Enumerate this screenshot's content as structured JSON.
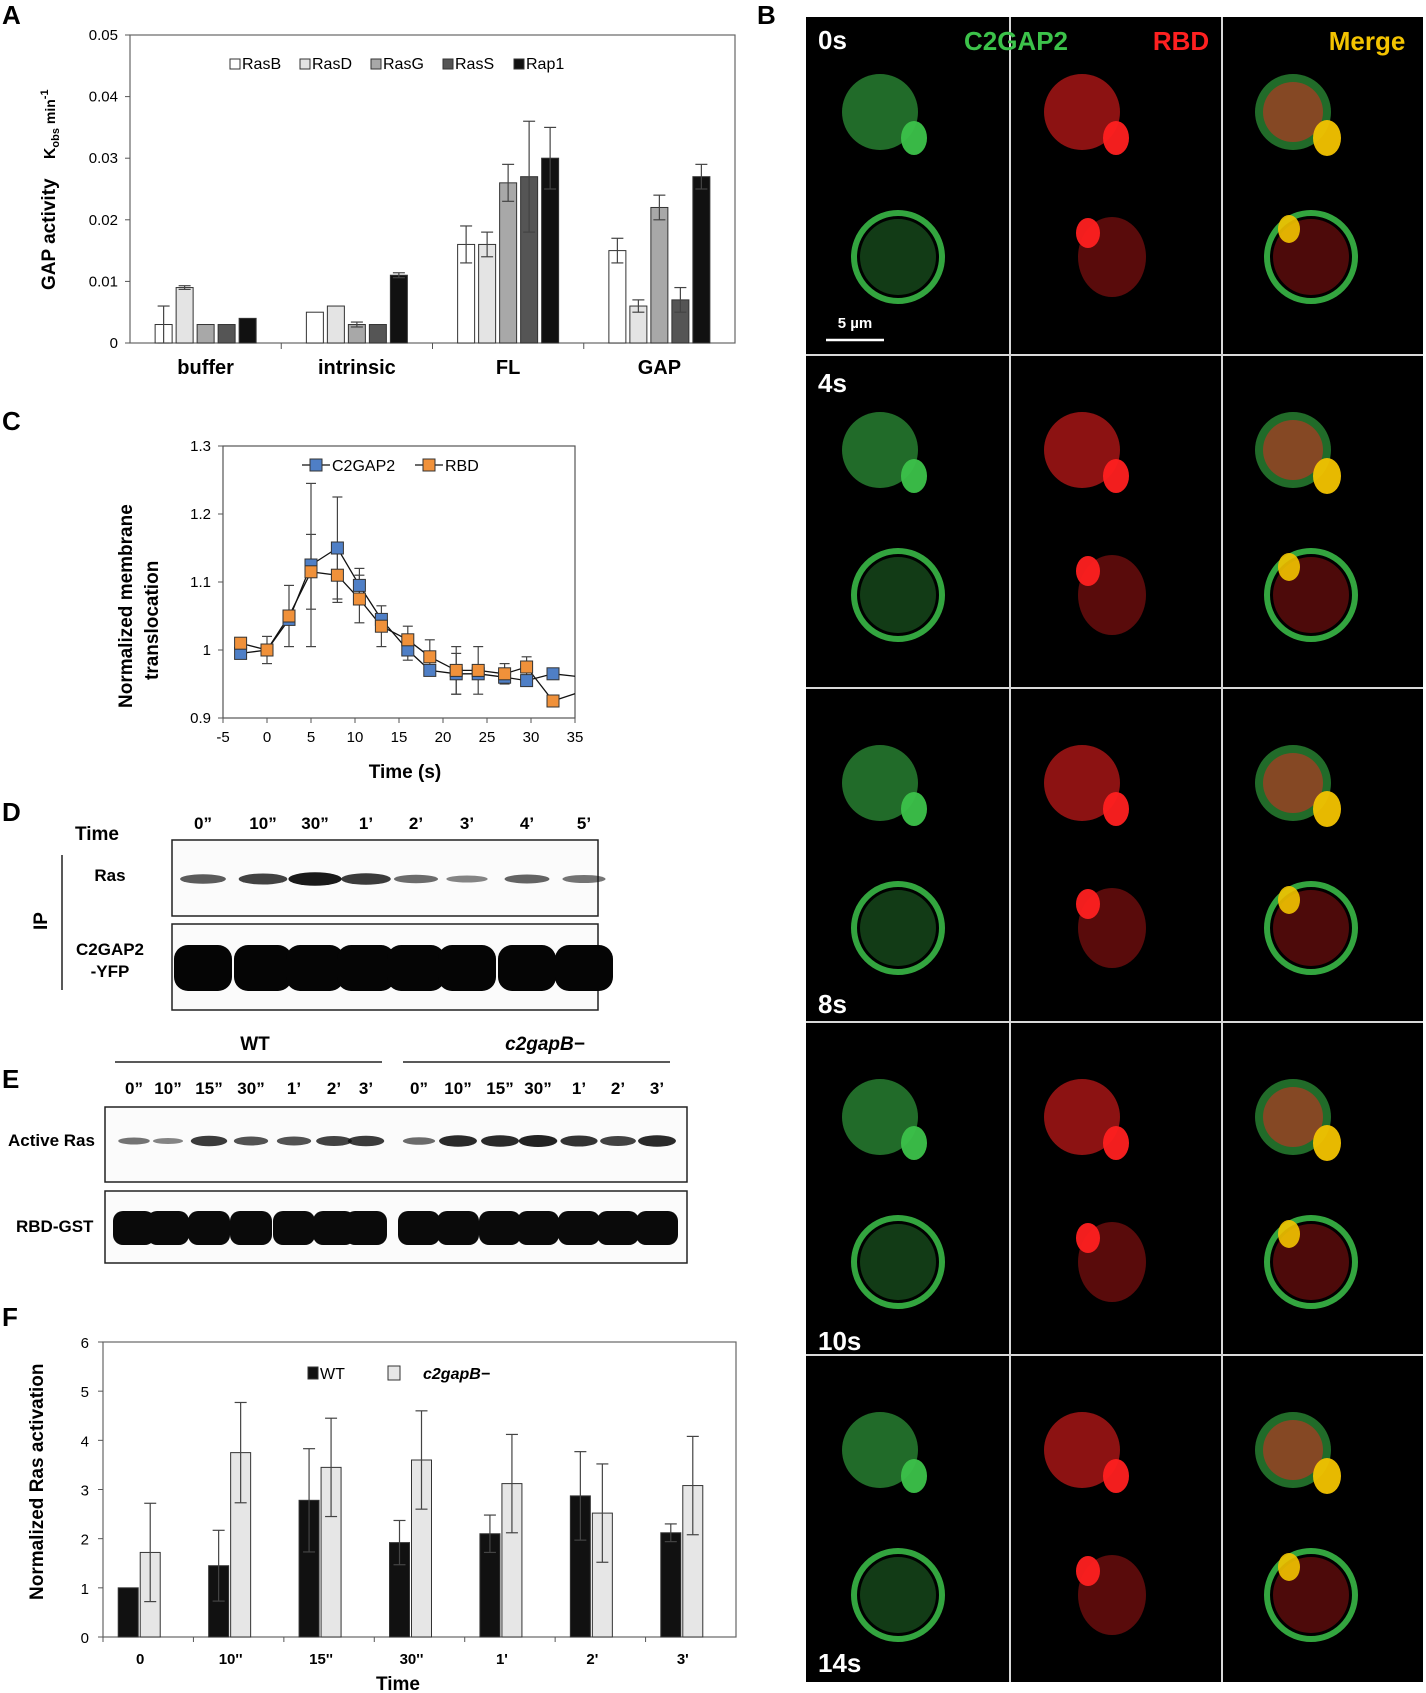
{
  "panel_labels": {
    "a": "A",
    "b": "B",
    "c": "C",
    "d": "D",
    "e": "E",
    "f": "F"
  },
  "chart_data": [
    {
      "id": "A",
      "type": "bar",
      "ylabel": "GAP activity",
      "ylabel_units": "K",
      "ylabel_units_sub": "obs",
      "ylabel_units_rest": " min",
      "ylabel_units_sup": "-1",
      "ylim": [
        0,
        0.05
      ],
      "yticks": [
        "0",
        "0.01",
        "0.02",
        "0.03",
        "0.04",
        "0.05"
      ],
      "categories": [
        "buffer",
        "intrinsic",
        "FL",
        "GAP"
      ],
      "legend_position": "top",
      "series": [
        {
          "name": "RasB",
          "color": "#ffffff",
          "values": [
            0.003,
            0.005,
            0.016,
            0.015
          ],
          "errors": [
            0.003,
            0.0001,
            0.003,
            0.002
          ]
        },
        {
          "name": "RasD",
          "color": "#e4e4e4",
          "values": [
            0.009,
            0.006,
            0.016,
            0.006
          ],
          "errors": [
            0.0003,
            0.0001,
            0.002,
            0.001
          ]
        },
        {
          "name": "RasG",
          "color": "#a8a8a8",
          "values": [
            0.003,
            0.003,
            0.026,
            0.022
          ],
          "errors": [
            0.0001,
            0.0004,
            0.003,
            0.002
          ]
        },
        {
          "name": "RasS",
          "color": "#555555",
          "values": [
            0.003,
            0.003,
            0.027,
            0.007
          ],
          "errors": [
            0.0001,
            0.0001,
            0.009,
            0.002
          ]
        },
        {
          "name": "Rap1",
          "color": "#111111",
          "values": [
            0.004,
            0.011,
            0.03,
            0.027
          ],
          "errors": [
            0.0001,
            0.0004,
            0.005,
            0.002
          ]
        }
      ]
    },
    {
      "id": "C",
      "type": "line",
      "xlabel": "Time (s)",
      "ylabel": "Normalized membrane translocation",
      "ylabel_line1": "Normalized membrane",
      "ylabel_line2": "translocation",
      "xlim": [
        -5,
        35
      ],
      "ylim": [
        0.9,
        1.3
      ],
      "xticks": [
        "-5",
        "0",
        "5",
        "10",
        "15",
        "20",
        "25",
        "30",
        "35"
      ],
      "yticks": [
        "0.9",
        "1",
        "1.1",
        "1.2",
        "1.3"
      ],
      "legend_position": "top",
      "series": [
        {
          "name": "C2GAP2",
          "color": "#4f7fc6",
          "x": [
            -3,
            0,
            2.5,
            5,
            8,
            10.5,
            13,
            16,
            18.5,
            21.5,
            24,
            27,
            29.5,
            32.5,
            36
          ],
          "y": [
            0.995,
            1.0,
            1.045,
            1.125,
            1.15,
            1.095,
            1.045,
            1.0,
            0.97,
            0.965,
            0.965,
            0.96,
            0.955,
            0.965,
            0.96
          ],
          "errors": [
            0,
            0,
            0,
            0.12,
            0.075,
            0.025,
            0,
            0.015,
            0,
            0.03,
            0,
            0,
            0,
            0,
            0
          ]
        },
        {
          "name": "RBD",
          "color": "#f0913a",
          "x": [
            -3,
            0,
            2.5,
            5,
            8,
            10.5,
            13,
            16,
            18.5,
            21.5,
            24,
            27,
            29.5,
            32.5,
            36
          ],
          "y": [
            1.01,
            1.0,
            1.05,
            1.115,
            1.11,
            1.075,
            1.035,
            1.015,
            0.99,
            0.97,
            0.97,
            0.965,
            0.975,
            0.925,
            0.94
          ],
          "errors": [
            0,
            0.02,
            0.045,
            0.055,
            0.04,
            0.035,
            0.03,
            0.02,
            0.025,
            0.035,
            0.035,
            0.015,
            0.015,
            0,
            0
          ]
        }
      ]
    },
    {
      "id": "F",
      "type": "bar",
      "xlabel": "Time",
      "ylabel": "Normalized Ras activation",
      "ylim": [
        0,
        6
      ],
      "yticks": [
        "0",
        "1",
        "2",
        "3",
        "4",
        "5",
        "6"
      ],
      "categories": [
        "0",
        "10''",
        "15''",
        "30''",
        "1'",
        "2'",
        "3'"
      ],
      "legend_position": "top",
      "series": [
        {
          "name": "WT",
          "color": "#111111",
          "values": [
            1.0,
            1.45,
            2.78,
            1.92,
            2.1,
            2.87,
            2.12
          ],
          "errors": [
            0,
            0.72,
            1.05,
            0.45,
            0.38,
            0.9,
            0.18
          ]
        },
        {
          "name": "c2gapB−",
          "color": "#e6e6e6",
          "values": [
            1.72,
            3.75,
            3.45,
            3.6,
            3.12,
            2.52,
            3.08
          ],
          "errors": [
            1.0,
            1.02,
            1.0,
            1.0,
            1.0,
            1.0,
            1.0
          ]
        }
      ]
    }
  ],
  "panel_b": {
    "headers": {
      "green": "C2GAP2",
      "red": "RBD",
      "merge": "Merge"
    },
    "time_labels": [
      "0s",
      "4s",
      "8s",
      "10s",
      "14s"
    ],
    "scale_bar": "5 µm",
    "colors": {
      "green": "#3cc24a",
      "red": "#ff2020",
      "merge": "#f3c300"
    }
  },
  "panel_d": {
    "time_heading": "Time",
    "times": [
      "0”",
      "10”",
      "30”",
      "1’",
      "2’",
      "3’",
      "4’",
      "5’"
    ],
    "ip_label": "IP",
    "row1": "Ras",
    "row2_line1": "C2GAP2",
    "row2_line2": "-YFP",
    "ras_band_intensity": [
      0.55,
      0.7,
      0.95,
      0.75,
      0.45,
      0.3,
      0.5,
      0.4
    ]
  },
  "panel_e": {
    "group1": "WT",
    "group2": "c2gapB−",
    "times": [
      "0”",
      "10”",
      "15”",
      "30”",
      "1’",
      "2’",
      "3’",
      "0”",
      "10”",
      "15”",
      "30”",
      "1’",
      "2’",
      "3’"
    ],
    "row1": "Active Ras",
    "row2": "RBD-GST",
    "active_band_intensity": [
      0.4,
      0.3,
      0.75,
      0.6,
      0.6,
      0.7,
      0.75,
      0.45,
      0.85,
      0.85,
      0.9,
      0.8,
      0.7,
      0.85
    ]
  }
}
